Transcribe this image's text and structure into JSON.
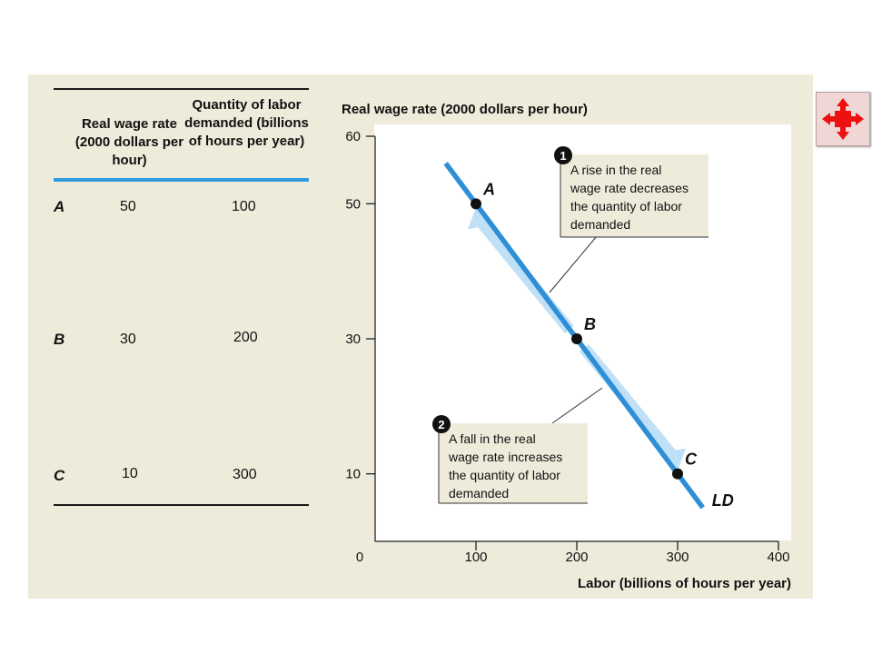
{
  "table": {
    "header_wage": "Real wage rate (2000 dollars per hour)",
    "header_labor": "Quantity of labor demanded (billions of hours per year)",
    "rows": [
      {
        "label": "A",
        "wage": "50",
        "labor": "100"
      },
      {
        "label": "B",
        "wage": "30",
        "labor": "200"
      },
      {
        "label": "C",
        "wage": "10",
        "labor": "300"
      }
    ]
  },
  "chart_data": {
    "type": "line",
    "ylabel": "Real wage rate (2000 dollars per hour)",
    "xlabel": "Labor (billions of hours per year)",
    "xlim": [
      0,
      400
    ],
    "ylim": [
      0,
      60
    ],
    "x_ticks": [
      "0",
      "100",
      "200",
      "300",
      "400"
    ],
    "y_ticks": [
      "60",
      "50",
      "30",
      "10"
    ],
    "series": [
      {
        "name": "LD",
        "x": [
          70,
          100,
          200,
          300,
          325
        ],
        "y": [
          56,
          50,
          30,
          10,
          5
        ]
      }
    ],
    "points": [
      {
        "label": "A",
        "x": 100,
        "y": 50
      },
      {
        "label": "B",
        "x": 200,
        "y": 30
      },
      {
        "label": "C",
        "x": 300,
        "y": 10
      }
    ],
    "annotations": [
      {
        "number": "1",
        "text": [
          "A rise in the real",
          "wage rate decreases",
          "the quantity of labor",
          "demanded"
        ]
      },
      {
        "number": "2",
        "text": [
          "A fall in the real",
          "wage rate increases",
          "the quantity of labor",
          "demanded"
        ]
      }
    ],
    "colors": {
      "curve": "#2e8fd6",
      "arrow": "#bfe0f7",
      "panel": "#efebdb",
      "table_rule": "#2e9de0"
    }
  },
  "expand_icon": "expand-arrows-icon"
}
